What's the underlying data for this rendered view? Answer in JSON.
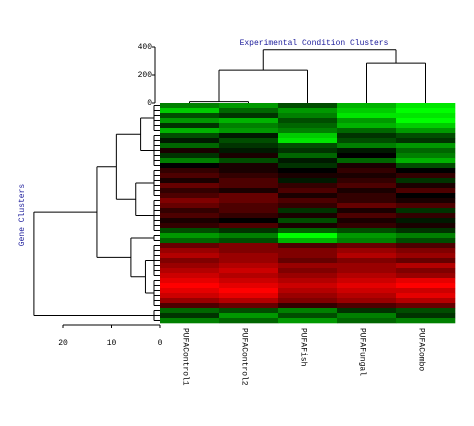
{
  "chart_data": {
    "type": "heatmap",
    "title": "Experimental Condition Clusters",
    "row_title": "Gene Clusters",
    "columns": [
      "PUFAControl1",
      "PUFAControl2",
      "PUFAFish",
      "PUFAFungal",
      "PUFACombo"
    ],
    "zlim": [
      -1,
      1
    ],
    "color_low": "#00ff00",
    "color_mid": "#000000",
    "color_high": "#ff0000",
    "rows": [
      [
        -0.5,
        -0.6,
        -0.3,
        -0.7,
        -0.9
      ],
      [
        -0.8,
        -0.4,
        -0.6,
        -0.8,
        -1
      ],
      [
        -0.3,
        -0.2,
        -0.5,
        -0.9,
        -0.9
      ],
      [
        -0.6,
        -0.7,
        -0.3,
        -0.6,
        -1
      ],
      [
        -0.2,
        -0.5,
        -0.4,
        -0.7,
        -0.8
      ],
      [
        -0.7,
        -0.6,
        -0.5,
        -0.4,
        -0.6
      ],
      [
        -0.3,
        -0.1,
        -0.8,
        -0.2,
        -0.3
      ],
      [
        -0.1,
        -0.3,
        -0.9,
        -0.3,
        -0.2
      ],
      [
        -0.4,
        -0.2,
        -0.3,
        -0.5,
        -0.6
      ],
      [
        0.1,
        -0.1,
        -0.2,
        -0.1,
        -0.4
      ],
      [
        -0.2,
        0.1,
        -0.4,
        0,
        -0.5
      ],
      [
        -0.5,
        -0.3,
        -0.1,
        -0.4,
        -0.7
      ],
      [
        0,
        0.1,
        -0.2,
        0.1,
        -0.3
      ],
      [
        0.2,
        0.1,
        0,
        0.2,
        0
      ],
      [
        0.3,
        0.2,
        0.1,
        0.1,
        0.2
      ],
      [
        0.1,
        0.3,
        -0.1,
        0.2,
        -0.2
      ],
      [
        0.4,
        0.3,
        0.2,
        0.3,
        0.1
      ],
      [
        0.2,
        0.1,
        0.3,
        0.1,
        0.3
      ],
      [
        0.3,
        0.4,
        0.1,
        0.2,
        0
      ],
      [
        0.5,
        0.4,
        0.3,
        0.2,
        0.1
      ],
      [
        0.4,
        0.3,
        0.2,
        0.4,
        0.3
      ],
      [
        0.2,
        0.3,
        -0.2,
        0.1,
        -0.2
      ],
      [
        0.3,
        0.2,
        0.1,
        0.3,
        0.2
      ],
      [
        0.1,
        0,
        -0.3,
        0.1,
        -0.1
      ],
      [
        0.2,
        0.3,
        0.1,
        0.2,
        0.1
      ],
      [
        -0.3,
        -0.2,
        -0.4,
        -0.3,
        -0.2
      ],
      [
        -0.6,
        -0.5,
        -1,
        -0.6,
        -0.5
      ],
      [
        -0.4,
        -0.3,
        -0.7,
        -0.5,
        -0.3
      ],
      [
        0.4,
        0.5,
        0.3,
        0.4,
        0.3
      ],
      [
        0.6,
        0.5,
        0.5,
        0.6,
        0.5
      ],
      [
        0.7,
        0.6,
        0.5,
        0.7,
        0.6
      ],
      [
        0.5,
        0.6,
        0.4,
        0.5,
        0.4
      ],
      [
        0.6,
        0.7,
        0.6,
        0.6,
        0.7
      ],
      [
        0.7,
        0.8,
        0.5,
        0.6,
        0.5
      ],
      [
        0.8,
        0.7,
        0.6,
        0.7,
        0.6
      ],
      [
        0.9,
        0.8,
        0.7,
        0.8,
        0.9
      ],
      [
        1,
        0.9,
        0.8,
        0.9,
        1
      ],
      [
        0.9,
        1,
        0.7,
        0.8,
        0.8
      ],
      [
        0.8,
        0.9,
        0.6,
        0.7,
        0.9
      ],
      [
        0.6,
        0.7,
        0.5,
        0.6,
        0.7
      ],
      [
        0.3,
        0.4,
        0.2,
        0.3,
        0.4
      ],
      [
        -0.4,
        -0.3,
        -0.5,
        -0.2,
        -0.3
      ],
      [
        -0.2,
        -0.6,
        -0.3,
        -0.5,
        -0.2
      ],
      [
        -0.5,
        -0.4,
        -0.6,
        -0.4,
        -0.5
      ]
    ],
    "col_dendrogram": {
      "lim": [
        0,
        400
      ],
      "ticks": [
        0,
        200,
        400
      ],
      "merges": [
        [
          0,
          1,
          10
        ],
        [
          5,
          2,
          235
        ],
        [
          3,
          4,
          285
        ],
        [
          6,
          7,
          380
        ]
      ]
    },
    "row_dendrogram": {
      "lim": [
        0,
        20
      ],
      "ticks": [
        20,
        10,
        0
      ],
      "groups": [
        [
          0,
          6
        ],
        [
          6,
          13
        ],
        [
          13,
          19
        ],
        [
          19,
          26
        ],
        [
          26,
          28
        ],
        [
          28,
          35
        ],
        [
          35,
          41
        ],
        [
          41,
          44
        ]
      ],
      "merges": [
        [
          0,
          1,
          4
        ],
        [
          2,
          3,
          5
        ],
        [
          8,
          9,
          9
        ],
        [
          5,
          6,
          3
        ],
        [
          4,
          11,
          6
        ],
        [
          10,
          12,
          13
        ],
        [
          13,
          7,
          26
        ]
      ]
    }
  }
}
